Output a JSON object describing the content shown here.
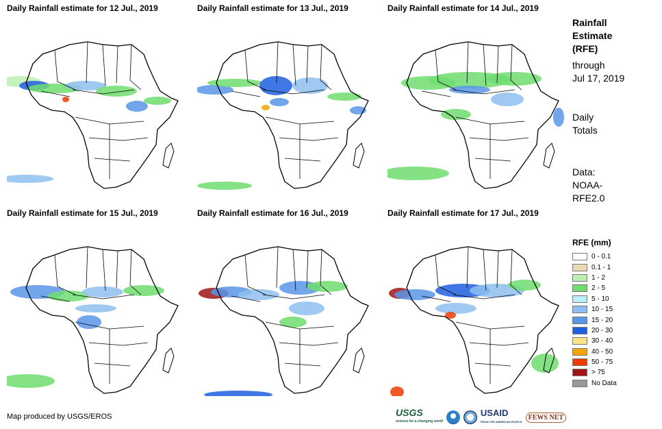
{
  "panels": [
    {
      "title": "Daily Rainfall estimate for 12 Jul., 2019"
    },
    {
      "title": "Daily Rainfall estimate for 13 Jul., 2019"
    },
    {
      "title": "Daily Rainfall estimate for 14 Jul., 2019"
    },
    {
      "title": "Daily Rainfall estimate for 15 Jul., 2019"
    },
    {
      "title": "Daily Rainfall estimate for 16 Jul., 2019"
    },
    {
      "title": "Daily Rainfall estimate for 17 Jul., 2019"
    }
  ],
  "sidebar": {
    "title_line1": "Rainfall",
    "title_line2": "Estimate",
    "title_line3": "(RFE)",
    "through_line1": "through",
    "through_line2": "Jul 17, 2019",
    "totals_line1": "Daily",
    "totals_line2": "Totals",
    "data_line1": "Data:",
    "data_line2": "NOAA-",
    "data_line3": "RFE2.0"
  },
  "legend": {
    "title": "RFE (mm)",
    "items": [
      {
        "label": "0 - 0.1",
        "color": "#ffffff"
      },
      {
        "label": "0.1 - 1",
        "color": "#ead9b5"
      },
      {
        "label": "1 - 2",
        "color": "#bdf0b0"
      },
      {
        "label": "2 - 5",
        "color": "#6fdc6f"
      },
      {
        "label": "5 - 10",
        "color": "#b8f0f5"
      },
      {
        "label": "10 - 15",
        "color": "#8fbff0"
      },
      {
        "label": "15 - 20",
        "color": "#5a95e8"
      },
      {
        "label": "20 - 30",
        "color": "#1f5fe0"
      },
      {
        "label": "30 - 40",
        "color": "#fae48a"
      },
      {
        "label": "40 - 50",
        "color": "#f5a400"
      },
      {
        "label": "50 - 75",
        "color": "#f03a00"
      },
      {
        "label": "> 75",
        "color": "#a01414"
      },
      {
        "label": "No Data",
        "color": "#999999"
      }
    ]
  },
  "footer": {
    "credit": "Map produced by USGS/EROS",
    "logos": [
      "USGS",
      "NOAA",
      "USAID",
      "FEWS NET"
    ]
  }
}
